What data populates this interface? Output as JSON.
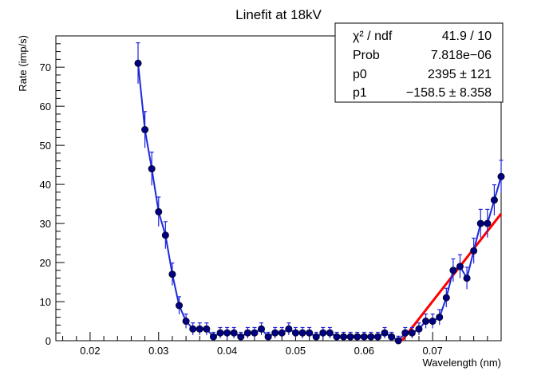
{
  "chart_data": {
    "type": "scatter",
    "title": "Linefit at 18kV",
    "xlabel": "Wavelength (nm)",
    "ylabel": "Rate (imp/s)",
    "xlim": [
      0.015,
      0.08
    ],
    "ylim": [
      0,
      78
    ],
    "x_ticks": [
      0.02,
      0.03,
      0.04,
      0.05,
      0.06,
      0.07
    ],
    "x_tick_labels": [
      "0.02",
      "0.03",
      "0.04",
      "0.05",
      "0.06",
      "0.07"
    ],
    "y_ticks": [
      0,
      10,
      20,
      30,
      40,
      50,
      60,
      70
    ],
    "y_tick_labels": [
      "0",
      "10",
      "20",
      "30",
      "40",
      "50",
      "60",
      "70"
    ],
    "series": [
      {
        "name": "data",
        "color": "#000080",
        "errcolor": "#2222dd",
        "x": [
          0.027,
          0.028,
          0.029,
          0.03,
          0.031,
          0.032,
          0.033,
          0.034,
          0.035,
          0.036,
          0.037,
          0.038,
          0.039,
          0.04,
          0.041,
          0.042,
          0.043,
          0.044,
          0.045,
          0.046,
          0.047,
          0.048,
          0.049,
          0.05,
          0.051,
          0.052,
          0.053,
          0.054,
          0.055,
          0.056,
          0.057,
          0.058,
          0.059,
          0.06,
          0.061,
          0.062,
          0.063,
          0.064,
          0.065,
          0.066,
          0.067,
          0.068,
          0.069,
          0.07,
          0.071,
          0.072,
          0.073,
          0.074,
          0.075,
          0.076,
          0.077,
          0.078,
          0.079,
          0.08
        ],
        "y": [
          71,
          54,
          44,
          33,
          27,
          17,
          9,
          5,
          3,
          3,
          3,
          1,
          2,
          2,
          2,
          1,
          2,
          2,
          3,
          1,
          2,
          2,
          3,
          2,
          2,
          2,
          1,
          2,
          2,
          1,
          1,
          1,
          1,
          1,
          1,
          1,
          2,
          1,
          0,
          2,
          2,
          3,
          5,
          5,
          6,
          11,
          18,
          19,
          16,
          23,
          30,
          30,
          36,
          35
        ]
      },
      {
        "name": "fit",
        "color": "#ff0000",
        "type": "line",
        "x": [
          0.0655,
          0.08
        ],
        "y": [
          0,
          32.5
        ]
      }
    ],
    "x_extra": [
      0.079
    ],
    "y_extra": [
      42
    ],
    "stats": {
      "rows": [
        {
          "label": "χ² / ndf",
          "value": "41.9 / 10"
        },
        {
          "label": "Prob",
          "value": "7.818e−06"
        },
        {
          "label": "p0",
          "value": "2395 ±   121"
        },
        {
          "label": "p1",
          "value": "−158.5 ± 8.358"
        }
      ]
    }
  }
}
